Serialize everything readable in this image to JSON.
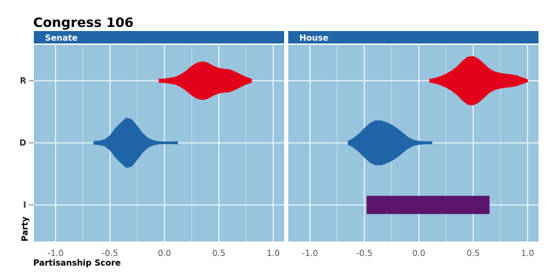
{
  "chart_data": {
    "type": "violin",
    "title": "Congress 106",
    "xlabel": "Partisanship Score",
    "ylabel": "Party",
    "xlim": [
      -1.2,
      1.1
    ],
    "x_ticks": [
      "-1.0",
      "-0.5",
      "0.0",
      "0.5",
      "1.0"
    ],
    "categories": [
      "R",
      "D",
      "I"
    ],
    "colors": {
      "R": "#e3001b",
      "D": "#1f65a8",
      "I": "#5b166c"
    },
    "panels": [
      {
        "name": "Senate",
        "violins": [
          {
            "party": "R",
            "profile": [
              [
                -0.05,
                0.06
              ],
              [
                0.0,
                0.07
              ],
              [
                0.05,
                0.09
              ],
              [
                0.1,
                0.13
              ],
              [
                0.15,
                0.22
              ],
              [
                0.2,
                0.35
              ],
              [
                0.25,
                0.52
              ],
              [
                0.3,
                0.64
              ],
              [
                0.35,
                0.69
              ],
              [
                0.4,
                0.64
              ],
              [
                0.45,
                0.53
              ],
              [
                0.5,
                0.45
              ],
              [
                0.55,
                0.42
              ],
              [
                0.6,
                0.4
              ],
              [
                0.65,
                0.32
              ],
              [
                0.7,
                0.22
              ],
              [
                0.75,
                0.13
              ],
              [
                0.8,
                0.06
              ]
            ]
          },
          {
            "party": "D",
            "profile": [
              [
                -0.65,
                0.05
              ],
              [
                -0.6,
                0.07
              ],
              [
                -0.55,
                0.11
              ],
              [
                -0.5,
                0.26
              ],
              [
                -0.45,
                0.52
              ],
              [
                -0.4,
                0.72
              ],
              [
                -0.35,
                0.9
              ],
              [
                -0.3,
                0.84
              ],
              [
                -0.25,
                0.6
              ],
              [
                -0.2,
                0.34
              ],
              [
                -0.15,
                0.16
              ],
              [
                -0.1,
                0.08
              ],
              [
                -0.05,
                0.04
              ],
              [
                0.0,
                0.035
              ],
              [
                0.05,
                0.03
              ],
              [
                0.1,
                0.04
              ],
              [
                0.12,
                0.05
              ]
            ]
          }
        ]
      },
      {
        "name": "House",
        "violins": [
          {
            "party": "R",
            "profile": [
              [
                0.1,
                0.05
              ],
              [
                0.15,
                0.09
              ],
              [
                0.2,
                0.15
              ],
              [
                0.25,
                0.24
              ],
              [
                0.3,
                0.35
              ],
              [
                0.35,
                0.5
              ],
              [
                0.4,
                0.7
              ],
              [
                0.45,
                0.86
              ],
              [
                0.5,
                0.88
              ],
              [
                0.55,
                0.78
              ],
              [
                0.6,
                0.6
              ],
              [
                0.65,
                0.42
              ],
              [
                0.7,
                0.32
              ],
              [
                0.75,
                0.27
              ],
              [
                0.8,
                0.24
              ],
              [
                0.85,
                0.22
              ],
              [
                0.9,
                0.18
              ],
              [
                0.95,
                0.11
              ],
              [
                1.0,
                0.04
              ]
            ]
          },
          {
            "party": "D",
            "profile": [
              [
                -0.65,
                0.06
              ],
              [
                -0.6,
                0.16
              ],
              [
                -0.55,
                0.32
              ],
              [
                -0.5,
                0.52
              ],
              [
                -0.45,
                0.7
              ],
              [
                -0.4,
                0.8
              ],
              [
                -0.35,
                0.8
              ],
              [
                -0.3,
                0.74
              ],
              [
                -0.25,
                0.65
              ],
              [
                -0.2,
                0.52
              ],
              [
                -0.15,
                0.36
              ],
              [
                -0.1,
                0.2
              ],
              [
                -0.05,
                0.1
              ],
              [
                0.0,
                0.06
              ],
              [
                0.05,
                0.04
              ],
              [
                0.1,
                0.04
              ],
              [
                0.12,
                0.04
              ]
            ]
          },
          {
            "party": "I",
            "profile": [
              [
                -0.48,
                0.33
              ],
              [
                0.65,
                0.33
              ]
            ]
          }
        ]
      }
    ]
  }
}
